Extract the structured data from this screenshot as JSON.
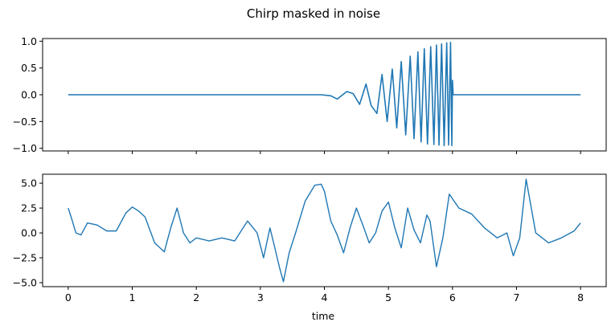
{
  "chart_data": [
    {
      "type": "line",
      "title": "Chirp masked in noise",
      "xlabel": "",
      "ylabel": "",
      "xlim": [
        -0.4,
        8.4
      ],
      "ylim": [
        -1.05,
        1.05
      ],
      "xticks": [
        0,
        1,
        2,
        3,
        4,
        5,
        6,
        7,
        8
      ],
      "xtick_labels_visible": false,
      "yticks": [
        -1.0,
        -0.5,
        0.0,
        0.5,
        1.0
      ],
      "ytick_labels": [
        "−1.0",
        "−0.5",
        "0.0",
        "0.5",
        "1.0"
      ],
      "grid": false,
      "color": "#1f77b4",
      "series": [
        {
          "x": [
            0,
            1,
            2,
            3,
            3.95,
            4.1,
            4.2,
            4.35,
            4.45,
            4.55,
            4.65,
            4.73,
            4.82,
            4.9,
            4.98,
            5.06,
            5.13,
            5.2,
            5.27,
            5.34,
            5.4,
            5.46,
            5.51,
            5.56,
            5.61,
            5.66,
            5.71,
            5.75,
            5.79,
            5.83,
            5.87,
            5.91,
            5.94,
            5.97,
            5.99,
            6.0,
            6.01,
            8
          ],
          "y": [
            0,
            0,
            0,
            0,
            0,
            -0.02,
            -0.08,
            0.06,
            0.02,
            -0.18,
            0.2,
            -0.2,
            -0.35,
            0.38,
            -0.5,
            0.48,
            -0.62,
            0.62,
            -0.75,
            0.72,
            -0.82,
            0.8,
            -0.88,
            0.86,
            -0.92,
            0.9,
            -0.93,
            0.93,
            -0.94,
            0.95,
            -0.95,
            0.97,
            -0.94,
            0.98,
            -0.95,
            0.27,
            0,
            0
          ]
        }
      ]
    },
    {
      "type": "line",
      "xlabel": "time",
      "ylabel": "",
      "xlim": [
        -0.4,
        8.4
      ],
      "ylim": [
        -5.4,
        5.9
      ],
      "xticks": [
        0,
        1,
        2,
        3,
        4,
        5,
        6,
        7,
        8
      ],
      "xtick_labels": [
        "0",
        "1",
        "2",
        "3",
        "4",
        "5",
        "6",
        "7",
        "8"
      ],
      "yticks": [
        -5.0,
        -2.5,
        0.0,
        2.5,
        5.0
      ],
      "ytick_labels": [
        "−5.0",
        "−2.5",
        "0.0",
        "2.5",
        "5.0"
      ],
      "grid": false,
      "color": "#1f77b4",
      "series": [
        {
          "x": [
            0,
            0.05,
            0.12,
            0.2,
            0.3,
            0.45,
            0.6,
            0.75,
            0.9,
            1.0,
            1.1,
            1.2,
            1.35,
            1.5,
            1.6,
            1.7,
            1.8,
            1.9,
            2.0,
            2.2,
            2.4,
            2.6,
            2.8,
            2.95,
            3.05,
            3.15,
            3.2,
            3.3,
            3.36,
            3.45,
            3.55,
            3.7,
            3.85,
            3.95,
            4.0,
            4.1,
            4.2,
            4.3,
            4.4,
            4.5,
            4.6,
            4.7,
            4.8,
            4.9,
            5.0,
            5.1,
            5.2,
            5.3,
            5.4,
            5.5,
            5.6,
            5.65,
            5.75,
            5.85,
            5.95,
            6.1,
            6.3,
            6.5,
            6.7,
            6.85,
            6.95,
            7.05,
            7.15,
            7.3,
            7.5,
            7.7,
            7.9,
            8.0
          ],
          "y": [
            2.5,
            1.5,
            0.0,
            -0.2,
            1.0,
            0.8,
            0.2,
            0.2,
            2.0,
            2.6,
            2.2,
            1.6,
            -1.0,
            -1.9,
            0.5,
            2.5,
            0.0,
            -1.0,
            -0.5,
            -0.8,
            -0.5,
            -0.8,
            1.2,
            0.0,
            -2.5,
            0.5,
            -0.8,
            -3.5,
            -4.9,
            -2.0,
            0.0,
            3.2,
            4.8,
            4.9,
            4.2,
            1.2,
            -0.2,
            -2.0,
            0.5,
            2.5,
            0.8,
            -1.0,
            0.0,
            2.2,
            3.1,
            0.5,
            -1.5,
            2.5,
            0.3,
            -1.0,
            1.8,
            1.2,
            -3.4,
            -0.5,
            3.9,
            2.5,
            1.9,
            0.5,
            -0.5,
            0.0,
            -2.3,
            -0.5,
            5.4,
            0.0,
            -1.0,
            -0.5,
            0.2,
            1.0
          ]
        }
      ]
    }
  ]
}
